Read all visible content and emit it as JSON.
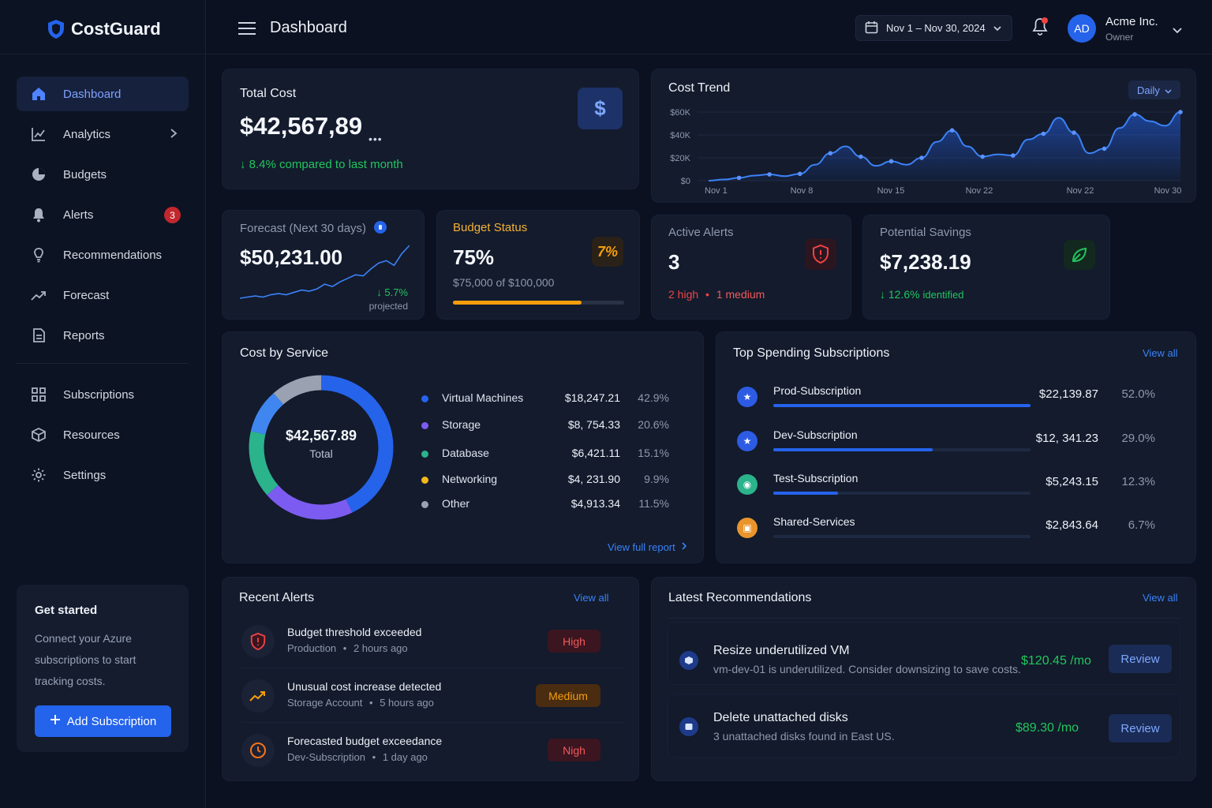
{
  "app": {
    "name": "CostGuard"
  },
  "header": {
    "title": "Dashboard",
    "date_range": "Nov 1 – Nov 30, 2024",
    "org_name": "Acme Inc.",
    "org_role": "Owner",
    "avatar_initials": "AD"
  },
  "sidebar": {
    "items": [
      {
        "label": "Dashboard",
        "icon": "home-icon",
        "active": true
      },
      {
        "label": "Analytics",
        "icon": "chart-icon",
        "has_submenu": true
      },
      {
        "label": "Budgets",
        "icon": "pie-icon"
      },
      {
        "label": "Alerts",
        "icon": "bell-icon",
        "badge": "3"
      },
      {
        "label": "Recommendations",
        "icon": "lightbulb-icon"
      },
      {
        "label": "Forecast",
        "icon": "trend-icon"
      },
      {
        "label": "Reports",
        "icon": "document-icon"
      },
      {
        "label": "Subscriptions",
        "icon": "grid-icon"
      },
      {
        "label": "Resources",
        "icon": "cube-icon"
      },
      {
        "label": "Settings",
        "icon": "gear-icon"
      }
    ],
    "get_started": {
      "title": "Get started",
      "text": "Connect your Azure subscriptions to start tracking costs.",
      "button": "Add Subscription"
    }
  },
  "total_cost": {
    "title": "Total Cost",
    "value": "$42,567,89",
    "change": "8.4% compared to last month",
    "icon": "dollar-icon"
  },
  "cost_trend": {
    "title": "Cost Trend",
    "granularity": "Daily",
    "chart_data": {
      "type": "area",
      "x_labels": [
        "Nov 1",
        "Nov 8",
        "Nov 15",
        "Nov 22",
        "Nov 22",
        "Nov 30"
      ],
      "y_ticks": [
        "$0",
        "$20K",
        "$40K",
        "$60K"
      ],
      "ylim": [
        0,
        60000
      ],
      "values": [
        0,
        1000,
        2500,
        4500,
        5500,
        4000,
        6000,
        14000,
        24000,
        30000,
        21000,
        13000,
        17000,
        14000,
        20000,
        34000,
        44000,
        30000,
        21000,
        23000,
        22000,
        36000,
        41000,
        55000,
        42000,
        24000,
        28000,
        46000,
        58000,
        52000,
        48000,
        60000
      ],
      "grid": true
    }
  },
  "forecast": {
    "label": "Forecast (Next 30 days)",
    "value": "$50,231.00",
    "change": "5.7%",
    "change_note": "projected",
    "chart_data": {
      "type": "line",
      "values": [
        10,
        11,
        12,
        11,
        13,
        14,
        13,
        15,
        17,
        16,
        18,
        22,
        20,
        24,
        27,
        30,
        29,
        35,
        40,
        42,
        38,
        48,
        55
      ]
    }
  },
  "budget_status": {
    "label": "Budget Status",
    "value": "75%",
    "sub": "$75,000 of $100,000",
    "progress": 0.75,
    "icon": "percent-icon",
    "icon_text": "7%"
  },
  "active_alerts": {
    "label": "Active Alerts",
    "value": "3",
    "high": "2 high",
    "medium": "1 medium",
    "icon": "shield-alert-icon"
  },
  "potential_savings": {
    "label": "Potential Savings",
    "value": "$7,238.19",
    "change": "12.6%",
    "change_note": "identified",
    "icon": "leaf-icon"
  },
  "cost_by_service": {
    "title": "Cost by Service",
    "center_value": "$42,567.89",
    "center_label": "Total",
    "link": "View full report",
    "chart_data": {
      "type": "pie",
      "categories": [
        "Virtual Machines",
        "Storage",
        "Database",
        "Networking",
        "Other"
      ],
      "values": [
        42.9,
        20.6,
        15.1,
        9.9,
        11.5
      ],
      "amounts": [
        "$18,247.21",
        "$8, 754.33",
        "$6,421.11",
        "$4, 231.90",
        "$4,913.34"
      ],
      "percents": [
        "42.9%",
        "20.6%",
        "15.1%",
        "9.9%",
        "11.5%"
      ],
      "colors": [
        "#2563eb",
        "#7c5cf0",
        "#2bb38c",
        "#f4b81d",
        "#9aa2b1"
      ]
    }
  },
  "top_subscriptions": {
    "title": "Top Spending Subscriptions",
    "link": "View all",
    "rows": [
      {
        "name": "Prod-Subscription",
        "amount": "$22,139.87",
        "percent": "52.0%",
        "fraction": 1.0,
        "color": "#2d5be3",
        "icon": "star-icon"
      },
      {
        "name": "Dev-Subscription",
        "amount": "$12, 341.23",
        "percent": "29.0%",
        "fraction": 0.62,
        "color": "#2d5be3",
        "icon": "star-icon"
      },
      {
        "name": "Test-Subscription",
        "amount": "$5,243.15",
        "percent": "12.3%",
        "fraction": 0.25,
        "color": "#2bb38c",
        "icon": "flask-icon"
      },
      {
        "name": "Shared-Services",
        "amount": "$2,843.64",
        "percent": "6.7%",
        "fraction": 0.0,
        "color": "#e9952b",
        "icon": "box-icon"
      }
    ]
  },
  "recent_alerts": {
    "title": "Recent Alerts",
    "link": "View all",
    "rows": [
      {
        "title": "Budget threshold exceeded",
        "source": "Production",
        "time": "2 hours ago",
        "severity": "High",
        "icon": "shield-alert-icon"
      },
      {
        "title": "Unusual cost increase detected",
        "source": "Storage Account",
        "time": "5 hours ago",
        "severity": "Medium",
        "icon": "trend-up-icon"
      },
      {
        "title": "Forecasted budget exceedance",
        "source": "Dev-Subscription",
        "time": "1 day ago",
        "severity": "Nigh",
        "icon": "clock-icon"
      }
    ]
  },
  "recommendations": {
    "title": "Latest Recommendations",
    "link": "View all",
    "rows": [
      {
        "title": "Resize underutilized VM",
        "desc": "vm-dev-01 is underutilized. Consider downsizing to save costs.",
        "savings": "$120.45 /mo",
        "button": "Review"
      },
      {
        "title": "Delete unattached disks",
        "desc": "3 unattached disks found in East US.",
        "savings": "$89.30 /mo",
        "button": "Review"
      }
    ]
  }
}
